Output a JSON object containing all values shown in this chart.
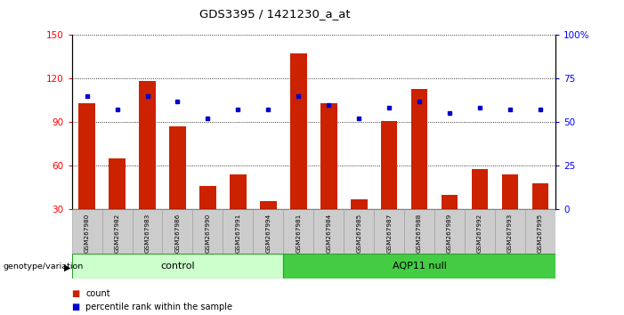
{
  "title": "GDS3395 / 1421230_a_at",
  "samples": [
    "GSM267980",
    "GSM267982",
    "GSM267983",
    "GSM267986",
    "GSM267990",
    "GSM267991",
    "GSM267994",
    "GSM267981",
    "GSM267984",
    "GSM267985",
    "GSM267987",
    "GSM267988",
    "GSM267989",
    "GSM267992",
    "GSM267993",
    "GSM267995"
  ],
  "bar_values": [
    103,
    65,
    118,
    87,
    46,
    54,
    36,
    137,
    103,
    37,
    91,
    113,
    40,
    58,
    54,
    48
  ],
  "dot_values": [
    65,
    57,
    65,
    62,
    52,
    57,
    57,
    65,
    60,
    52,
    58,
    62,
    55,
    58,
    57,
    57
  ],
  "bar_color": "#cc2200",
  "dot_color": "#0000cc",
  "ylim_left": [
    30,
    150
  ],
  "ylim_right": [
    0,
    100
  ],
  "yticks_left": [
    30,
    60,
    90,
    120,
    150
  ],
  "yticks_right": [
    0,
    25,
    50,
    75,
    100
  ],
  "ytick_labels_right": [
    "0",
    "25",
    "50",
    "75",
    "100%"
  ],
  "n_control": 7,
  "n_aqp11": 9,
  "control_color": "#ccffcc",
  "aqp11_color": "#44cc44",
  "control_label": "control",
  "aqp11_label": "AQP11 null",
  "genotype_label": "genotype/variation",
  "legend_count": "count",
  "legend_percentile": "percentile rank within the sample",
  "bar_width": 0.55,
  "tick_bg_color": "#cccccc"
}
